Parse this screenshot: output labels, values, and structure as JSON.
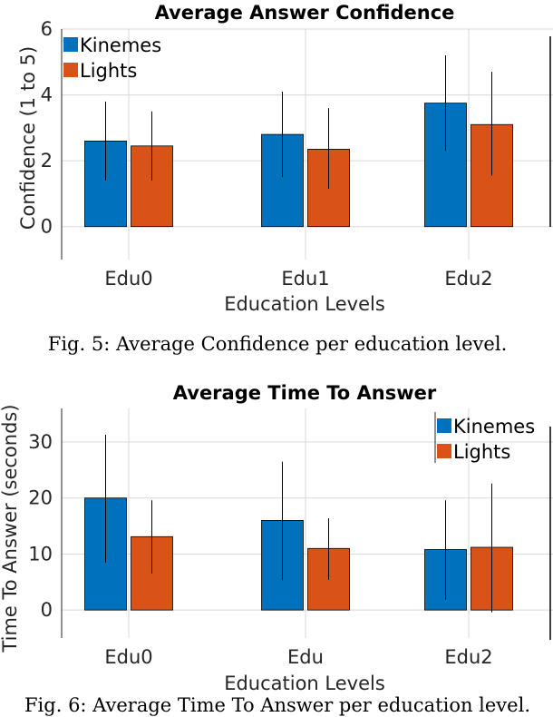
{
  "colors": {
    "kinemes": "#0072BD",
    "lights": "#D95319",
    "grid": "#d9d9d9",
    "axis": "#262626"
  },
  "chart_data": [
    {
      "type": "bar",
      "title": "Average Answer Confidence",
      "xlabel": "Education Levels",
      "ylabel": "Confidence (1 to 5)",
      "categories": [
        "Edu0",
        "Edu1",
        "Edu2"
      ],
      "yticks": [
        0,
        2,
        4,
        6
      ],
      "ylim": [
        -1,
        6
      ],
      "grid": true,
      "legend_position": "top-left",
      "series": [
        {
          "name": "Kinemes",
          "values": [
            2.6,
            2.8,
            3.75
          ],
          "err_low": [
            1.4,
            1.5,
            2.3
          ],
          "err_high": [
            3.8,
            4.1,
            5.2
          ]
        },
        {
          "name": "Lights",
          "values": [
            2.45,
            2.35,
            3.1
          ],
          "err_low": [
            1.4,
            1.15,
            1.55
          ],
          "err_high": [
            3.5,
            3.6,
            4.7
          ]
        }
      ],
      "caption": "Fig. 5: Average Confidence per education level."
    },
    {
      "type": "bar",
      "title": "Average Time To Answer",
      "xlabel": "Education Levels",
      "ylabel": "Time To Answer (seconds)",
      "categories": [
        "Edu0",
        "Edu",
        "Edu2"
      ],
      "yticks": [
        0,
        10,
        20,
        30
      ],
      "ylim": [
        -5,
        36
      ],
      "grid": true,
      "legend_position": "top-right",
      "series": [
        {
          "name": "Kinemes",
          "values": [
            20,
            16,
            10.8
          ],
          "err_low": [
            8.5,
            5.3,
            1.8
          ],
          "err_high": [
            31.3,
            26.5,
            19.6
          ]
        },
        {
          "name": "Lights",
          "values": [
            13.1,
            11,
            11.2
          ],
          "err_low": [
            6.5,
            5.4,
            -0.4
          ],
          "err_high": [
            19.6,
            16.4,
            22.6
          ]
        }
      ],
      "caption": "Fig. 6: Average Time To Answer per education level."
    }
  ]
}
